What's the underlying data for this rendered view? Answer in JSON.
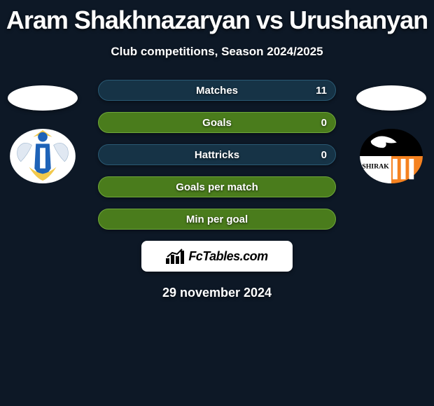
{
  "title": "Aram Shakhnazaryan vs Urushanyan",
  "subtitle": "Club competitions, Season 2024/2025",
  "date": "29 november 2024",
  "brand": {
    "text": "FcTables.com"
  },
  "stats": [
    {
      "label": "Matches",
      "value": "11",
      "style": "dark"
    },
    {
      "label": "Goals",
      "value": "0",
      "style": "green"
    },
    {
      "label": "Hattricks",
      "value": "0",
      "style": "dark"
    },
    {
      "label": "Goals per match",
      "value": "",
      "style": "green"
    },
    {
      "label": "Min per goal",
      "value": "",
      "style": "green"
    }
  ],
  "colors": {
    "background": "#0d1826",
    "pill_dark_bg": "#163346",
    "pill_green_bg": "#4a7c1c",
    "text": "#ffffff"
  },
  "crests": {
    "left": {
      "name": "West Armenia",
      "primary": "#1e63b8",
      "secondary": "#f2c94c",
      "wing": "#e0e8f2"
    },
    "right": {
      "name": "Shirak",
      "primary": "#f58220",
      "secondary": "#000000",
      "text": "SHIRAK"
    }
  }
}
